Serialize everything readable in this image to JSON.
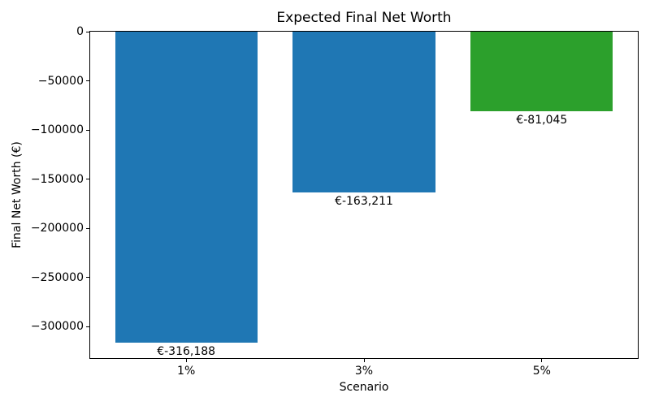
{
  "chart_data": {
    "type": "bar",
    "title": "Expected Final Net Worth",
    "xlabel": "Scenario",
    "ylabel": "Final Net Worth (€)",
    "categories": [
      "1%",
      "3%",
      "5%"
    ],
    "values": [
      -316188,
      -163211,
      -81045
    ],
    "bar_labels": [
      "€-316,188",
      "€-163,211",
      "€-81,045"
    ],
    "bar_colors": [
      "#1f77b4",
      "#1f77b4",
      "#2ca02c"
    ],
    "bar_width": 0.8,
    "xlim": [
      -0.54,
      2.54
    ],
    "ylim": [
      -331997,
      0
    ],
    "yticks": [
      0,
      -50000,
      -100000,
      -150000,
      -200000,
      -250000,
      -300000
    ],
    "ytick_labels": [
      "0",
      "−50000",
      "−100000",
      "−150000",
      "−200000",
      "−250000",
      "−300000"
    ],
    "grid": false,
    "legend": "none",
    "background": "#ffffff",
    "spine_color": "#000000"
  }
}
